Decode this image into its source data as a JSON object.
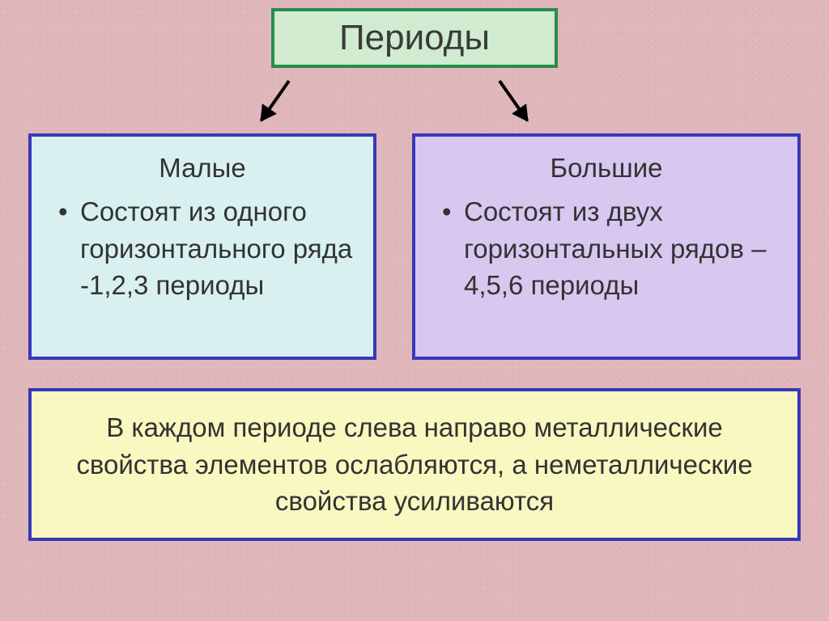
{
  "diagram": {
    "type": "flowchart",
    "background_color": "#e0b8bc",
    "title": {
      "text": "Периоды",
      "box_bg_color": "#d0ebd0",
      "box_border_color": "#2a8b4a",
      "box_border_width": 4,
      "font_size": 44,
      "text_color": "#3a3a3a"
    },
    "arrows": {
      "color": "#000000",
      "thickness": 4
    },
    "left_box": {
      "title": "Малые",
      "content": "Состоят из одного горизонтального ряда -1,2,3 периоды",
      "bg_color": "#d8f0f0",
      "border_color": "#3838b8",
      "border_width": 4,
      "font_size": 33,
      "text_color": "#333333"
    },
    "right_box": {
      "title": "Большие",
      "content": "Состоят из двух горизонтальных рядов – 4,5,6 периоды",
      "bg_color": "#d8c8f0",
      "border_color": "#3838b8",
      "border_width": 4,
      "font_size": 33,
      "text_color": "#333333"
    },
    "caption_box": {
      "text": "В каждом периоде слева направо металлические свойства элементов ослабляются, а неметаллические свойства усиливаются",
      "bg_color": "#f8f8c0",
      "border_color": "#3838b8",
      "border_width": 4,
      "font_size": 33,
      "text_color": "#333333"
    }
  }
}
